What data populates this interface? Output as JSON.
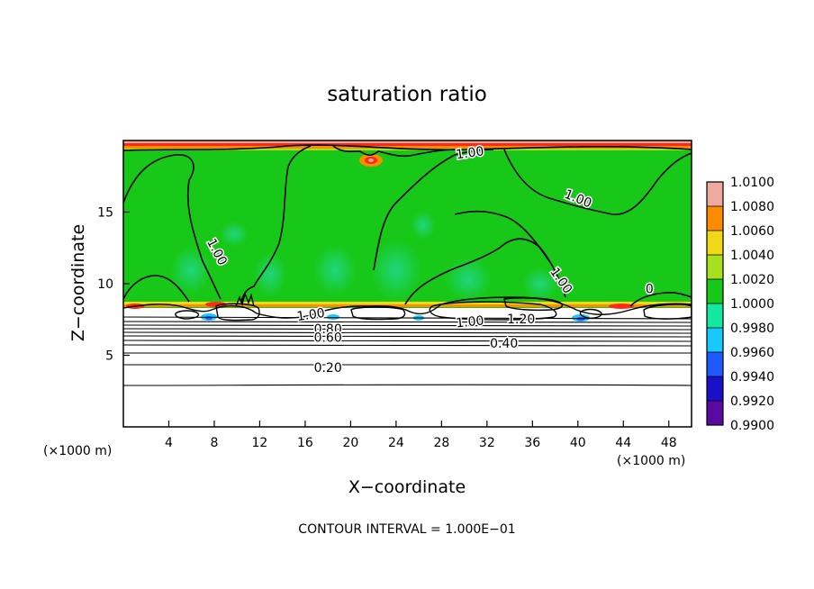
{
  "chart_data": {
    "type": "heatmap",
    "title": "saturation ratio",
    "xlabel": "X−coordinate",
    "ylabel": "Z−coordinate",
    "x_unit": "(×1000 m)",
    "z_unit": "(×1000 m)",
    "footer": "CONTOUR INTERVAL = 1.000E−01",
    "xlim": [
      0,
      50
    ],
    "ylim": [
      0,
      20
    ],
    "x_ticks": [
      4,
      8,
      12,
      16,
      20,
      24,
      28,
      32,
      36,
      40,
      44,
      48
    ],
    "x_tick_labels": [
      "4",
      "8",
      "12",
      "16",
      "20",
      "24",
      "28",
      "32",
      "36",
      "40",
      "44",
      "48"
    ],
    "y_ticks": [
      5,
      10,
      15
    ],
    "y_tick_labels": [
      "5",
      "10",
      "15"
    ],
    "colorbar": {
      "levels": [
        0.99,
        0.992,
        0.994,
        0.996,
        0.998,
        1.0,
        1.002,
        1.004,
        1.006,
        1.008,
        1.01
      ],
      "labels": [
        "0.9900",
        "0.9920",
        "0.9940",
        "0.9960",
        "0.9980",
        "1.0000",
        "1.0020",
        "1.0040",
        "1.0060",
        "1.0080",
        "1.0100"
      ],
      "colors": [
        "#5a0aa0",
        "#1a10c8",
        "#1e5aff",
        "#18c8ff",
        "#14e8a0",
        "#18c818",
        "#a8e020",
        "#f0d818",
        "#ff8c00",
        "#ff2a14",
        "#f0a8a0"
      ]
    },
    "contour_labels": [
      {
        "text": "1.00",
        "x": 30.5,
        "z": 19.1,
        "angle": -8
      },
      {
        "text": "1.00",
        "x": 40.0,
        "z": 15.9,
        "angle": 22
      },
      {
        "text": "1.00",
        "x": 8.2,
        "z": 12.2,
        "angle": 62
      },
      {
        "text": "1.00",
        "x": 38.5,
        "z": 10.2,
        "angle": 55
      },
      {
        "text": "0",
        "x": 46.3,
        "z": 9.6,
        "angle": 0
      },
      {
        "text": "1.00",
        "x": 16.5,
        "z": 7.8,
        "angle": -8
      },
      {
        "text": "0.80",
        "x": 18.0,
        "z": 6.8,
        "angle": 0
      },
      {
        "text": "0.60",
        "x": 18.0,
        "z": 6.2,
        "angle": 0
      },
      {
        "text": "1.00",
        "x": 30.5,
        "z": 7.3,
        "angle": -6
      },
      {
        "text": "1.20",
        "x": 35.0,
        "z": 7.5,
        "angle": 0
      },
      {
        "text": "0.40",
        "x": 33.5,
        "z": 5.8,
        "angle": 0
      },
      {
        "text": "0.20",
        "x": 18.0,
        "z": 4.1,
        "angle": 0
      }
    ]
  }
}
